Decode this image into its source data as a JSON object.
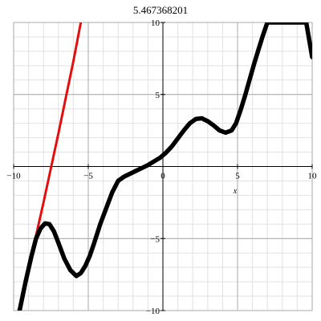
{
  "chart_data": {
    "type": "line",
    "title": "5.467368201",
    "xlabel": "x",
    "ylabel": "",
    "xlim": [
      -10,
      10
    ],
    "ylim": [
      -10,
      10
    ],
    "grid": true,
    "x_ticks": [
      -10,
      -5,
      0,
      5,
      10
    ],
    "y_ticks": [
      -10,
      -5,
      5,
      10
    ],
    "x_tick_labels": [
      "−10",
      "−5",
      "0",
      "5",
      "10"
    ],
    "y_tick_labels": [
      "−10",
      "−5",
      "5",
      "10"
    ],
    "series": [
      {
        "color": "#e01010",
        "x": [
          -9.6,
          -9.0,
          -8.5,
          -8.0,
          -7.5,
          -7.0,
          -6.5,
          -6.0,
          -5.5
        ],
        "y": [
          -10.0,
          -7.2,
          -4.8,
          -2.5,
          -0.1,
          2.3,
          4.8,
          7.3,
          10.0
        ]
      },
      {
        "color": "#000000",
        "x": [
          -9.6,
          -9.2,
          -8.8,
          -8.5,
          -8.2,
          -7.9,
          -7.6,
          -7.3,
          -7.0,
          -6.6,
          -6.2,
          -5.8,
          -5.5,
          -5.2,
          -4.9,
          -4.6,
          -4.2,
          -3.8,
          -3.4,
          -3.0,
          -2.6,
          -2.2,
          -1.8,
          -1.4,
          -1.0,
          -0.6,
          -0.2,
          0.2,
          0.6,
          1.0,
          1.4,
          1.8,
          2.2,
          2.6,
          3.0,
          3.4,
          3.8,
          4.2,
          4.6,
          4.9,
          5.2,
          5.5,
          5.8,
          6.1,
          6.4,
          6.7,
          7.0,
          7.3,
          7.6,
          9.6,
          10.0
        ],
        "y": [
          -10.0,
          -8.0,
          -6.2,
          -5.0,
          -4.3,
          -3.95,
          -4.0,
          -4.5,
          -5.3,
          -6.4,
          -7.2,
          -7.6,
          -7.4,
          -6.9,
          -6.2,
          -5.3,
          -4.0,
          -2.9,
          -1.8,
          -1.0,
          -0.7,
          -0.5,
          -0.3,
          -0.1,
          0.1,
          0.35,
          0.6,
          0.95,
          1.4,
          1.95,
          2.5,
          3.0,
          3.3,
          3.35,
          3.15,
          2.85,
          2.5,
          2.35,
          2.5,
          3.0,
          3.9,
          4.9,
          6.0,
          7.1,
          8.1,
          9.1,
          10.0,
          10.0,
          10.0,
          10.0,
          7.6
        ]
      }
    ]
  }
}
